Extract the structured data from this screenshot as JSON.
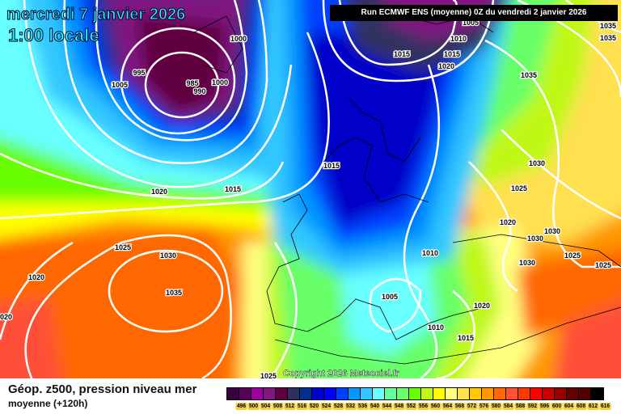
{
  "header": {
    "date": "mercredi 7 janvier 2026",
    "time": "1:00 locale",
    "run": "Run ECMWF ENS (moyenne) 0Z du vendredi 2 janvier 2026"
  },
  "map": {
    "copyright": "Copyright 2026 Meteociel.fr",
    "isobar_labels": [
      "1005",
      "995",
      "985",
      "990",
      "1000",
      "1000",
      "1010",
      "1005",
      "1015",
      "1015",
      "1020",
      "1035",
      "1035",
      "1035",
      "1015",
      "1020",
      "1015",
      "1030",
      "1025",
      "1020",
      "1030",
      "1030",
      "1025",
      "1030",
      "1020",
      "1035",
      "1010",
      "1030",
      "1025",
      "1025",
      "1005",
      "1020",
      "1010",
      "1015",
      "1020",
      "1025"
    ]
  },
  "footer": {
    "title": "Géop. z500, pression niveau mer",
    "subtitle": "moyenne  (+120h)"
  },
  "legend": {
    "unit_values": [
      "496",
      "500",
      "504",
      "508",
      "512",
      "516",
      "520",
      "524",
      "528",
      "532",
      "536",
      "540",
      "544",
      "548",
      "552",
      "556",
      "560",
      "564",
      "568",
      "572",
      "576",
      "580",
      "584",
      "588",
      "592",
      "596",
      "600",
      "604",
      "608",
      "612",
      "616"
    ],
    "colors": [
      "#3a0040",
      "#5a005a",
      "#a000a0",
      "#801880",
      "#600040",
      "#303060",
      "#003090",
      "#0000c8",
      "#0000ff",
      "#0040ff",
      "#0098ff",
      "#30c8ff",
      "#68ffff",
      "#68ff98",
      "#68ff68",
      "#68ff00",
      "#c0f818",
      "#ffff00",
      "#ffff80",
      "#ffe050",
      "#ffc800",
      "#ff9800",
      "#ff6800",
      "#ff5038",
      "#ff3800",
      "#ff0000",
      "#c80000",
      "#980000",
      "#680000",
      "#500000",
      "#000000"
    ]
  }
}
